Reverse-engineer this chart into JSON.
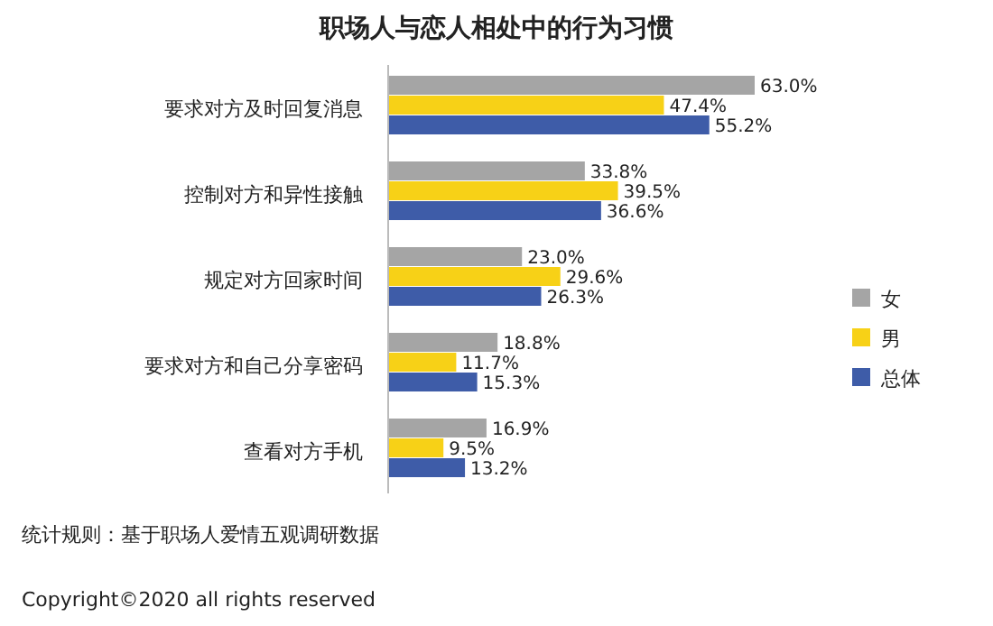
{
  "chart_data": {
    "type": "bar",
    "orientation": "horizontal",
    "title": "职场人与恋人相处中的行为习惯",
    "categories": [
      "要求对方及时回复消息",
      "控制对方和异性接触",
      "规定对方回家时间",
      "要求对方和自己分享密码",
      "查看对方手机"
    ],
    "series": [
      {
        "name": "女",
        "color": "#a5a5a5",
        "values": [
          63.0,
          33.8,
          23.0,
          18.8,
          16.9
        ],
        "value_labels": [
          "63.0%",
          "33.8%",
          "23.0%",
          "18.8%",
          "16.9%"
        ]
      },
      {
        "name": "男",
        "color": "#f7d117",
        "values": [
          47.4,
          39.5,
          29.6,
          11.7,
          9.5
        ],
        "value_labels": [
          "47.4%",
          "39.5%",
          "29.6%",
          "11.7%",
          "9.5%"
        ]
      },
      {
        "name": "总体",
        "color": "#3e5ca8",
        "values": [
          55.2,
          36.6,
          26.3,
          15.3,
          13.2
        ],
        "value_labels": [
          "55.2%",
          "36.6%",
          "26.3%",
          "15.3%",
          "13.2%"
        ]
      }
    ],
    "legend": "right",
    "annotations": [
      "统计规则：基于职场人爱情五观调研数据",
      "Copyright©2020 all rights reserved"
    ]
  }
}
